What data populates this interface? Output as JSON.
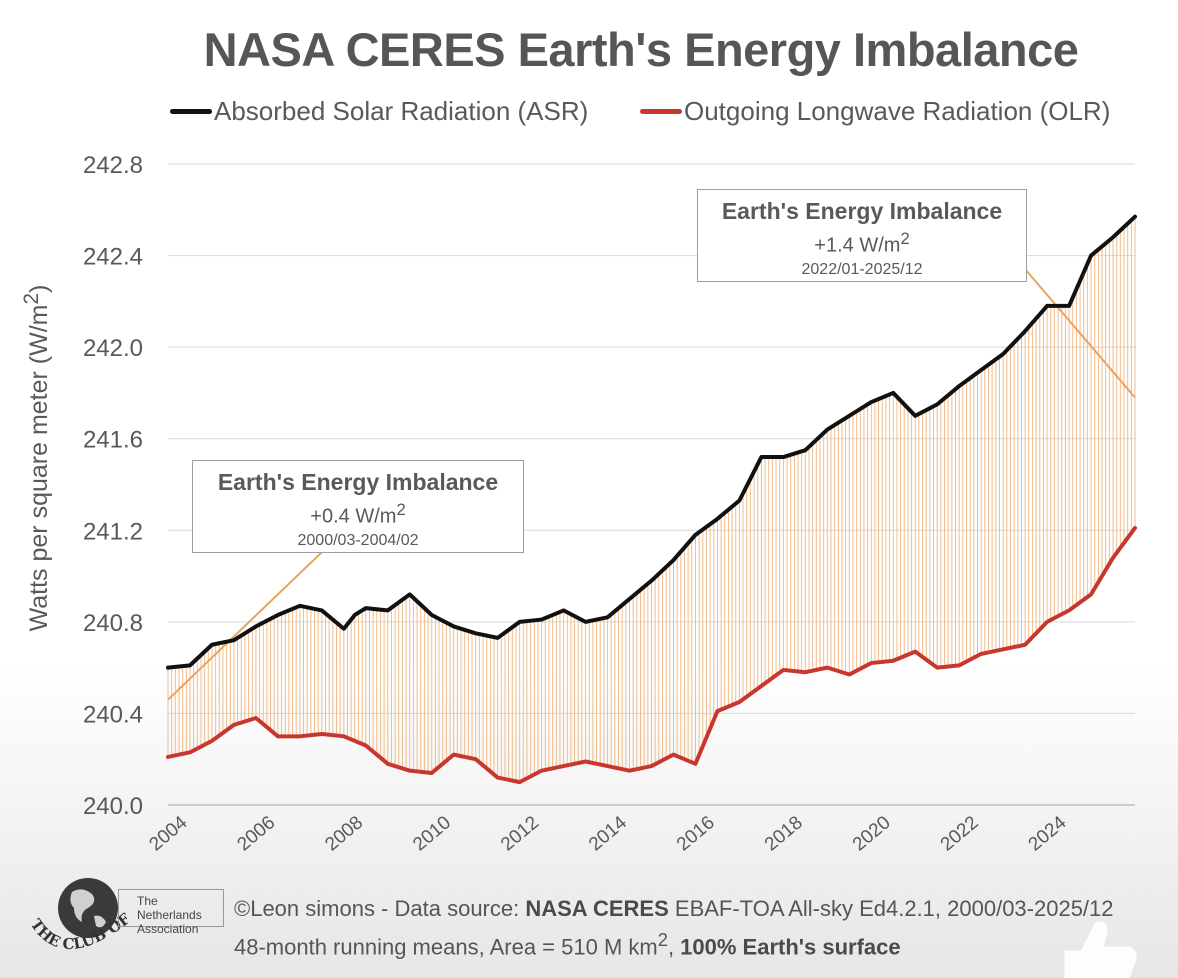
{
  "title": "NASA CERES Earth's Energy Imbalance",
  "legend": {
    "asr_label": "Absorbed Solar Radiation (ASR)",
    "olr_label": "Outgoing Longwave Radiation (OLR)"
  },
  "colors": {
    "asr": "#111111",
    "olr": "#c8372d",
    "fill": "#f0b27a",
    "trend": "#e9a45a",
    "grid": "#d9d9d9"
  },
  "annotations": [
    {
      "title": "Earth's Energy Imbalance",
      "value_prefix": "+0.4 W/m",
      "value_sup": "2",
      "period": "2000/03-2004/02"
    },
    {
      "title": "Earth's Energy Imbalance",
      "value_prefix": "+1.4 W/m",
      "value_sup": "2",
      "period": "2022/01-2025/12"
    }
  ],
  "footer": {
    "logo_text": "THE CLUB OF ROME",
    "association": "The Netherlands Association",
    "credit_prefix": "©Leon simons - Data source: ",
    "credit_source": "NASA CERES",
    "credit_rest": " EBAF-TOA All-sky Ed4.2.1, 2000/03-2025/12",
    "line2_prefix": "48-month running means, Area = 510 M km",
    "line2_sup": "2",
    "line2_mid": ", ",
    "line2_bold": "100% Earth's surface"
  },
  "chart_data": {
    "type": "area",
    "title": "NASA CERES Earth's Energy Imbalance",
    "ylabel_prefix": "Watts per square meter (W/m",
    "ylabel_sup": "2",
    "ylabel_suffix": ")",
    "xlabel": "",
    "xlim": [
      2004.0,
      2026.0
    ],
    "ylim": [
      240.0,
      242.8
    ],
    "x_ticks": [
      "2004",
      "2006",
      "2008",
      "2010",
      "2012",
      "2014",
      "2016",
      "2018",
      "2020",
      "2022",
      "2024"
    ],
    "y_ticks": [
      "240.0",
      "240.4",
      "240.8",
      "241.2",
      "241.6",
      "242.0",
      "242.4",
      "242.8"
    ],
    "grid": true,
    "legend_position": "top",
    "series": [
      {
        "name": "Absorbed Solar Radiation (ASR)",
        "x": [
          2004.0,
          2004.5,
          2005.0,
          2005.5,
          2006.0,
          2006.5,
          2007.0,
          2007.5,
          2008.0,
          2008.25,
          2008.5,
          2009.0,
          2009.5,
          2010.0,
          2010.5,
          2011.0,
          2011.5,
          2012.0,
          2012.5,
          2013.0,
          2013.5,
          2014.0,
          2014.5,
          2015.0,
          2015.5,
          2016.0,
          2016.5,
          2017.0,
          2017.5,
          2018.0,
          2018.5,
          2019.0,
          2019.5,
          2020.0,
          2020.5,
          2021.0,
          2021.5,
          2022.0,
          2022.5,
          2023.0,
          2023.5,
          2024.0,
          2024.5,
          2025.0,
          2025.5,
          2026.0
        ],
        "values": [
          240.6,
          240.61,
          240.7,
          240.72,
          240.78,
          240.83,
          240.87,
          240.85,
          240.77,
          240.83,
          240.86,
          240.85,
          240.92,
          240.83,
          240.78,
          240.75,
          240.73,
          240.8,
          240.81,
          240.85,
          240.8,
          240.82,
          240.9,
          240.98,
          241.07,
          241.18,
          241.25,
          241.33,
          241.52,
          241.52,
          241.55,
          241.64,
          241.7,
          241.76,
          241.8,
          241.7,
          241.75,
          241.83,
          241.9,
          241.97,
          242.07,
          242.18,
          242.18,
          242.4,
          242.48,
          242.57
        ]
      },
      {
        "name": "Outgoing Longwave Radiation (OLR)",
        "x": [
          2004.0,
          2004.5,
          2005.0,
          2005.5,
          2006.0,
          2006.5,
          2007.0,
          2007.5,
          2008.0,
          2008.5,
          2009.0,
          2009.5,
          2010.0,
          2010.5,
          2011.0,
          2011.5,
          2012.0,
          2012.5,
          2013.0,
          2013.5,
          2014.0,
          2014.5,
          2015.0,
          2015.5,
          2016.0,
          2016.5,
          2017.0,
          2017.5,
          2018.0,
          2018.5,
          2019.0,
          2019.5,
          2020.0,
          2020.5,
          2021.0,
          2021.5,
          2022.0,
          2022.5,
          2023.0,
          2023.5,
          2024.0,
          2024.5,
          2025.0,
          2025.5,
          2026.0
        ],
        "values": [
          240.21,
          240.23,
          240.28,
          240.35,
          240.38,
          240.3,
          240.3,
          240.31,
          240.3,
          240.26,
          240.18,
          240.15,
          240.14,
          240.22,
          240.2,
          240.12,
          240.1,
          240.15,
          240.17,
          240.19,
          240.17,
          240.15,
          240.17,
          240.22,
          240.18,
          240.41,
          240.45,
          240.52,
          240.59,
          240.58,
          240.6,
          240.57,
          240.62,
          240.63,
          240.67,
          240.6,
          240.61,
          240.66,
          240.68,
          240.7,
          240.8,
          240.85,
          240.92,
          241.08,
          241.21
        ]
      }
    ],
    "trend_lines": [
      {
        "x": [
          2004.0,
          2008.4
        ],
        "y": [
          240.46,
          241.27
        ]
      },
      {
        "x": [
          2022.7,
          2026.0
        ],
        "y": [
          242.52,
          241.78
        ]
      }
    ]
  }
}
